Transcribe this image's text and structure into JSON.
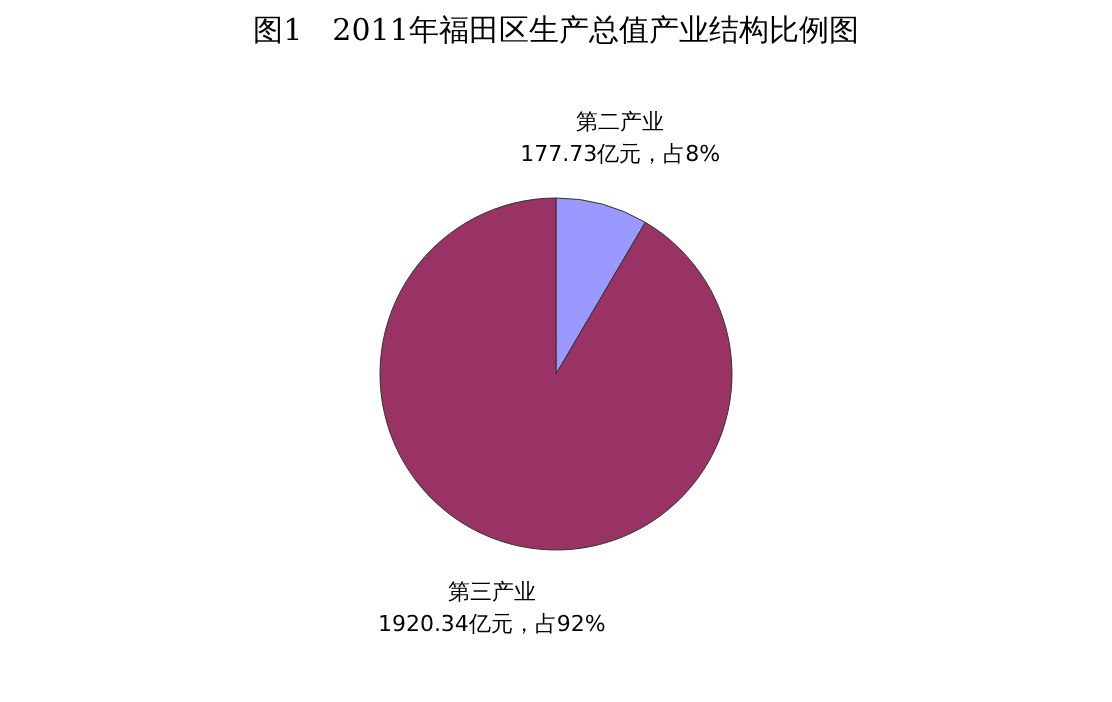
{
  "chart_data": {
    "type": "pie",
    "title": "图1　2011年福田区生产总值产业结构比例图",
    "categories": [
      "第二产业",
      "第三产业"
    ],
    "values": [
      177.73,
      1920.34
    ],
    "colors": [
      "#9999ff",
      "#993366"
    ],
    "value_labels": [
      "177.73亿元，占8%",
      "1920.34亿元，占92%"
    ],
    "legend": false
  }
}
